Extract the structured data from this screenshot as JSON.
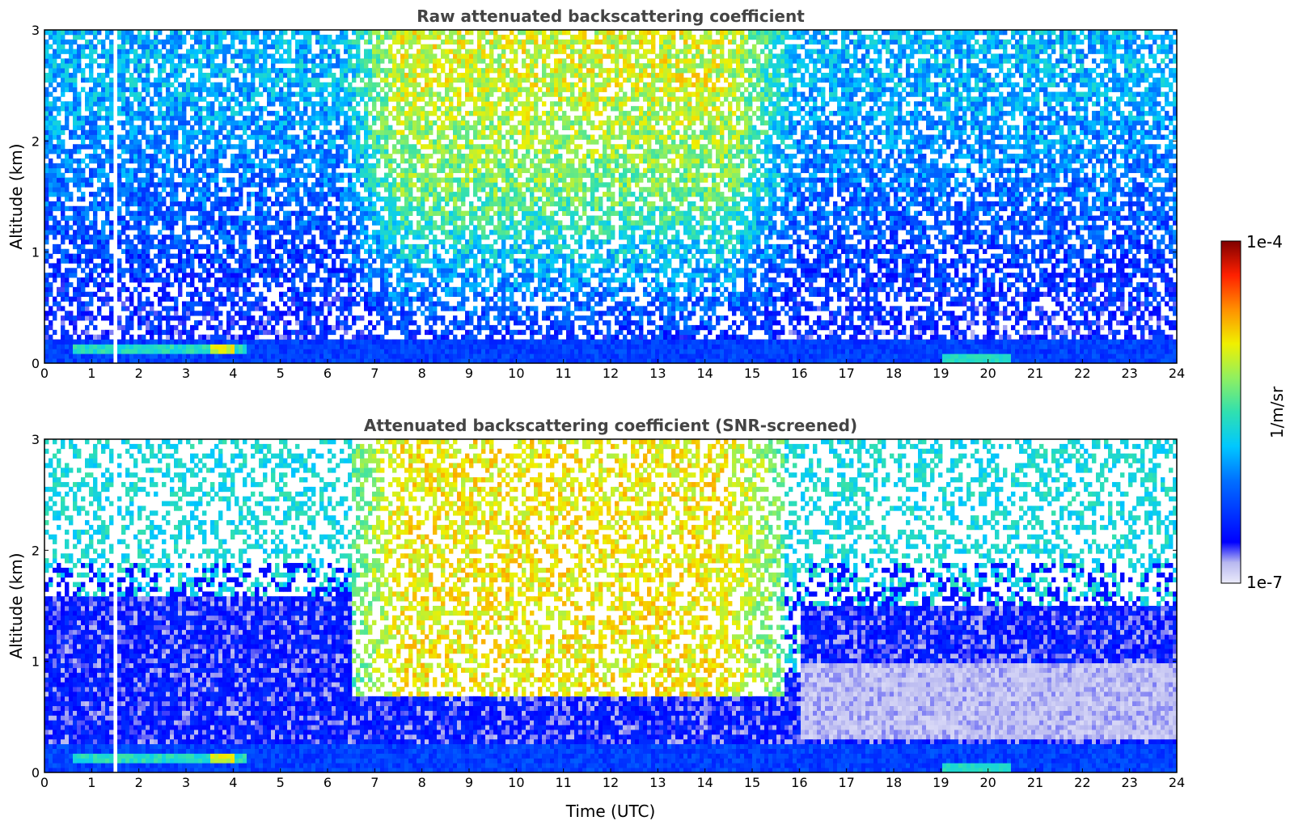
{
  "chart_data": [
    {
      "type": "heatmap",
      "title": "Raw attenuated backscattering coefficient",
      "xlabel": "",
      "ylabel": "Altitude (km)",
      "xlim": [
        0,
        24
      ],
      "ylim": [
        0,
        3
      ],
      "xticks": [
        "0",
        "1",
        "2",
        "3",
        "4",
        "5",
        "6",
        "7",
        "8",
        "9",
        "10",
        "11",
        "12",
        "13",
        "14",
        "15",
        "16",
        "17",
        "18",
        "19",
        "20",
        "21",
        "22",
        "23",
        "24"
      ],
      "yticks": [
        "0",
        "1",
        "2",
        "3"
      ],
      "features": [
        {
          "description": "surface aerosol layer",
          "x_range": [
            0,
            24
          ],
          "y_range": [
            0,
            0.2
          ]
        },
        {
          "description": "high-backscatter layer",
          "x_range": [
            0.6,
            4.2
          ],
          "y_range": [
            0.1,
            0.2
          ]
        },
        {
          "description": "high-backscatter layer",
          "x_range": [
            19,
            20.5
          ],
          "y_range": [
            0.03,
            0.12
          ]
        },
        {
          "description": "data gap",
          "x_range": [
            1.45,
            1.55
          ],
          "y_range": [
            0,
            3
          ]
        }
      ]
    },
    {
      "type": "heatmap",
      "title": "Attenuated backscattering coefficient (SNR-screened)",
      "xlabel": "Time (UTC)",
      "ylabel": "Altitude (km)",
      "xlim": [
        0,
        24
      ],
      "ylim": [
        0,
        3
      ],
      "xticks": [
        "0",
        "1",
        "2",
        "3",
        "4",
        "5",
        "6",
        "7",
        "8",
        "9",
        "10",
        "11",
        "12",
        "13",
        "14",
        "15",
        "16",
        "17",
        "18",
        "19",
        "20",
        "21",
        "22",
        "23",
        "24"
      ],
      "yticks": [
        "0",
        "1",
        "2",
        "3"
      ]
    }
  ],
  "colorbar": {
    "label": "1/m/sr",
    "max_label": "1e-4",
    "min_label": "1e-7",
    "colormap": "jet",
    "range": [
      1e-07,
      0.0001
    ],
    "scale": "log"
  }
}
